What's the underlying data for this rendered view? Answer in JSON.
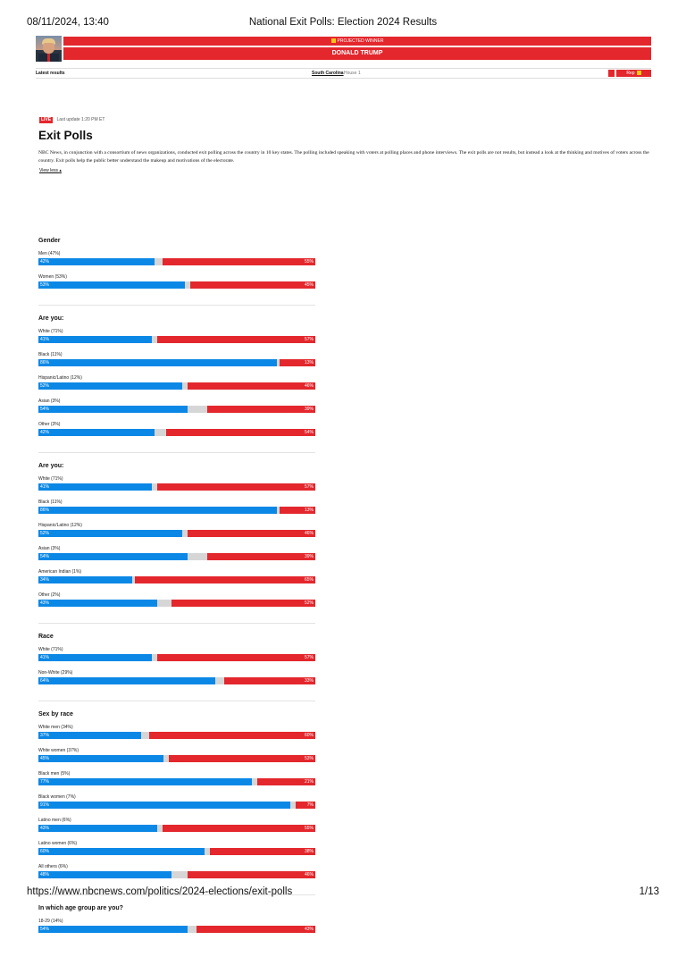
{
  "print_header": {
    "datetime": "08/11/2024, 13:40",
    "title": "National Exit Polls: Election 2024 Results"
  },
  "print_footer": {
    "url": "https://www.nbcnews.com/politics/2024-elections/exit-polls",
    "page": "1/13"
  },
  "banner": {
    "projected_label": "PROJECTED WINNER",
    "candidate": "DONALD TRUMP"
  },
  "status_row": {
    "left_label": "Latest results",
    "state": "South Carolina",
    "state_sub": "House 1",
    "right_pill": "Rep"
  },
  "article": {
    "live_badge": "LIVE",
    "updated": "Last update 1:20 PM ET",
    "title": "Exit Polls",
    "intro": "NBC News, in conjunction with a consortium of news organizations, conducted exit polling across the country in 10 key states. The polling included speaking with voters at polling places and phone interviews. The exit polls are not results, but instead a look at the thinking and motives of voters across the country. Exit polls help the public better understand the makeup and motivations of the electorate.",
    "view_less": "View less"
  },
  "colors": {
    "dem": "#0b88e6",
    "rep": "#e3272d",
    "other": "#d6d6d6"
  },
  "sections": [
    {
      "title": "Gender",
      "groups": [
        {
          "label": "Men (47%)",
          "dem": 42,
          "rep": 55,
          "dem_label": "42%",
          "rep_label": "55%"
        },
        {
          "label": "Women (53%)",
          "dem": 53,
          "rep": 45,
          "dem_label": "53%",
          "rep_label": "45%"
        }
      ]
    },
    {
      "title": "Are you:",
      "groups": [
        {
          "label": "White (71%)",
          "dem": 41,
          "rep": 57,
          "dem_label": "41%",
          "rep_label": "57%"
        },
        {
          "label": "Black (11%)",
          "dem": 86,
          "rep": 13,
          "dem_label": "86%",
          "rep_label": "13%"
        },
        {
          "label": "Hispanic/Latino (12%)",
          "dem": 52,
          "rep": 46,
          "dem_label": "52%",
          "rep_label": "46%"
        },
        {
          "label": "Asian (3%)",
          "dem": 54,
          "rep": 39,
          "dem_label": "54%",
          "rep_label": "39%"
        },
        {
          "label": "Other (3%)",
          "dem": 42,
          "rep": 54,
          "dem_label": "42%",
          "rep_label": "54%"
        }
      ]
    },
    {
      "title": "Are you:",
      "groups": [
        {
          "label": "White (71%)",
          "dem": 41,
          "rep": 57,
          "dem_label": "41%",
          "rep_label": "57%"
        },
        {
          "label": "Black (11%)",
          "dem": 86,
          "rep": 13,
          "dem_label": "86%",
          "rep_label": "13%"
        },
        {
          "label": "Hispanic/Latino (12%)",
          "dem": 52,
          "rep": 46,
          "dem_label": "52%",
          "rep_label": "46%"
        },
        {
          "label": "Asian (3%)",
          "dem": 54,
          "rep": 39,
          "dem_label": "54%",
          "rep_label": "39%"
        },
        {
          "label": "American Indian (1%)",
          "dem": 34,
          "rep": 65,
          "dem_label": "34%",
          "rep_label": "65%"
        },
        {
          "label": "Other (2%)",
          "dem": 43,
          "rep": 52,
          "dem_label": "43%",
          "rep_label": "52%"
        }
      ]
    },
    {
      "title": "Race",
      "groups": [
        {
          "label": "White (71%)",
          "dem": 41,
          "rep": 57,
          "dem_label": "41%",
          "rep_label": "57%"
        },
        {
          "label": "Non-White (29%)",
          "dem": 64,
          "rep": 33,
          "dem_label": "64%",
          "rep_label": "33%"
        }
      ]
    },
    {
      "title": "Sex by race",
      "groups": [
        {
          "label": "White men (34%)",
          "dem": 37,
          "rep": 60,
          "dem_label": "37%",
          "rep_label": "60%"
        },
        {
          "label": "White women (37%)",
          "dem": 45,
          "rep": 53,
          "dem_label": "45%",
          "rep_label": "53%"
        },
        {
          "label": "Black men (5%)",
          "dem": 77,
          "rep": 21,
          "dem_label": "77%",
          "rep_label": "21%"
        },
        {
          "label": "Black women (7%)",
          "dem": 91,
          "rep": 7,
          "dem_label": "91%",
          "rep_label": "7%"
        },
        {
          "label": "Latino men (6%)",
          "dem": 43,
          "rep": 55,
          "dem_label": "43%",
          "rep_label": "55%"
        },
        {
          "label": "Latino women (6%)",
          "dem": 60,
          "rep": 38,
          "dem_label": "60%",
          "rep_label": "38%"
        },
        {
          "label": "All others (6%)",
          "dem": 48,
          "rep": 46,
          "dem_label": "48%",
          "rep_label": "46%"
        }
      ]
    },
    {
      "title": "In which age group are you?",
      "groups": [
        {
          "label": "18-29 (14%)",
          "dem": 54,
          "rep": 43,
          "dem_label": "54%",
          "rep_label": "43%"
        }
      ]
    }
  ]
}
